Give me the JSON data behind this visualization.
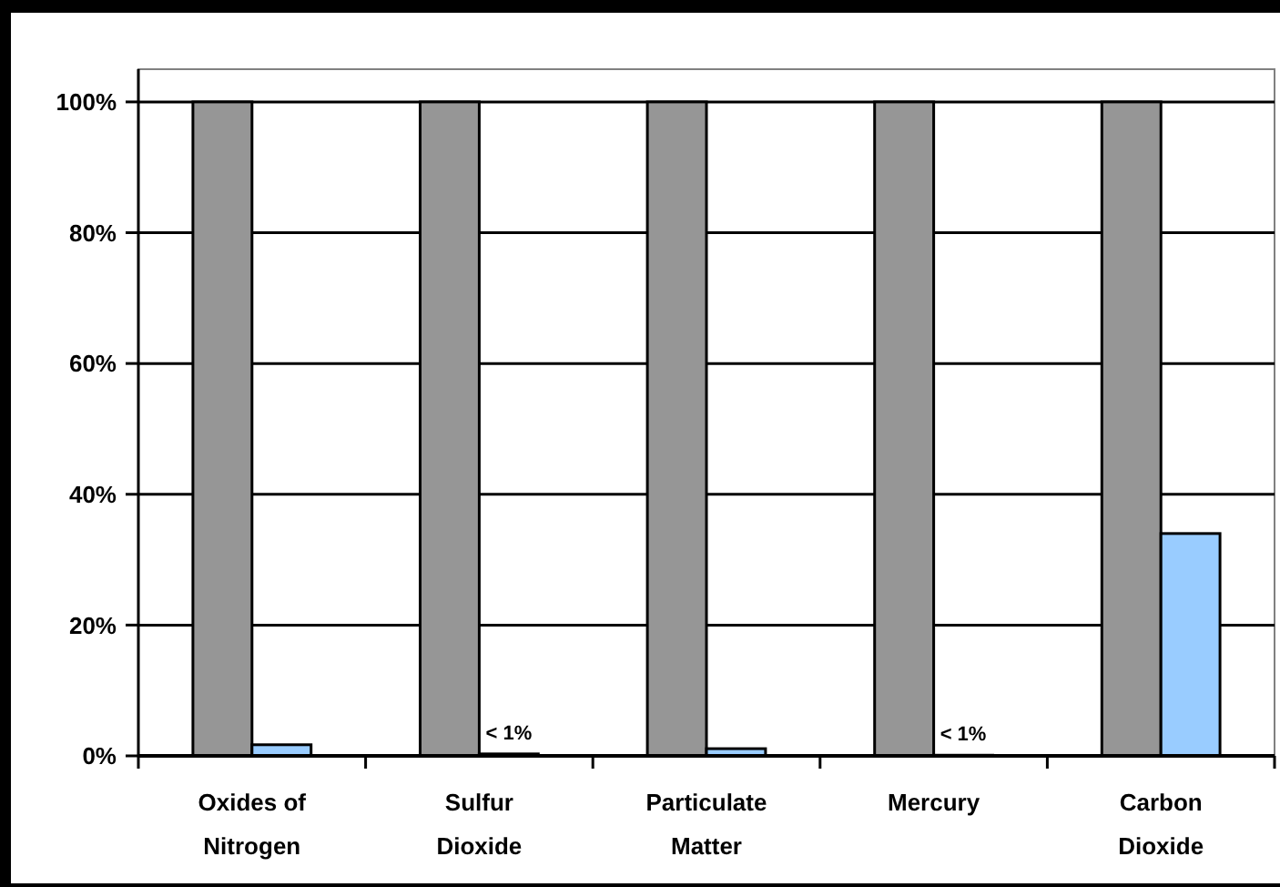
{
  "chart_data": {
    "type": "bar",
    "categories": [
      "Oxides of Nitrogen",
      "Sulfur Dioxide",
      "Particulate Matter",
      "Mercury",
      "Carbon Dioxide"
    ],
    "series": [
      {
        "color": "#969696",
        "values": [
          100,
          100,
          100,
          100,
          100
        ]
      },
      {
        "color": "#99ccff",
        "values": [
          1.7,
          0.3,
          1.1,
          0.1,
          34
        ],
        "value_labels": [
          null,
          "< 1%",
          null,
          "< 1%",
          null
        ]
      }
    ],
    "ylim": [
      0,
      105
    ],
    "yticks": [
      {
        "value": 0,
        "label": "0%"
      },
      {
        "value": 20,
        "label": "20%"
      },
      {
        "value": 40,
        "label": "40%"
      },
      {
        "value": 60,
        "label": "60%"
      },
      {
        "value": 80,
        "label": "80%"
      },
      {
        "value": 100,
        "label": "100%"
      }
    ],
    "grid": "y"
  }
}
